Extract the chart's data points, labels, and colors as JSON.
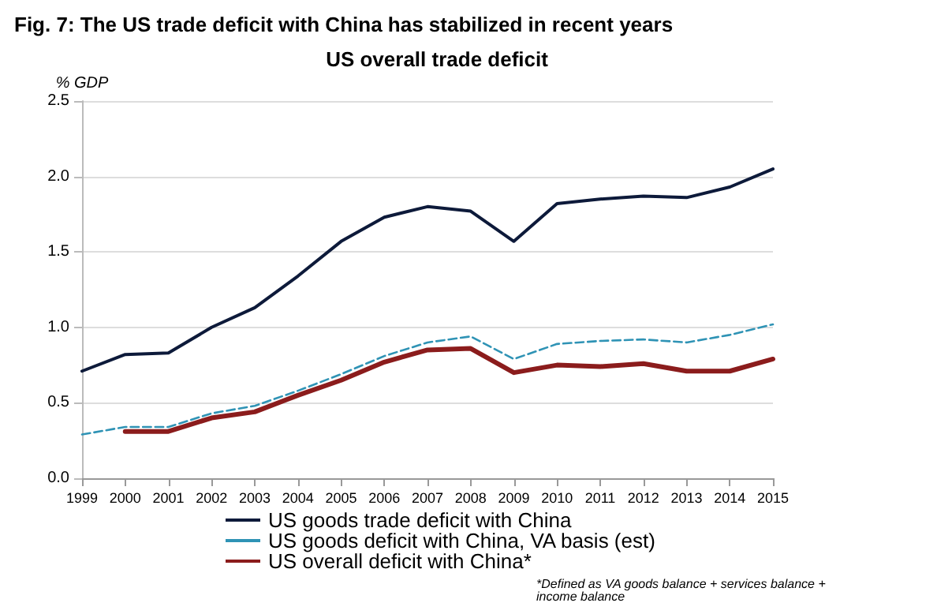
{
  "chart_data": {
    "type": "line",
    "title": "Fig. 7: The US trade deficit with China has stabilized in recent years",
    "subtitle": "US overall trade deficit",
    "ylabel": "% GDP",
    "categories": [
      "1999",
      "2000",
      "2001",
      "2002",
      "2003",
      "2004",
      "2005",
      "2006",
      "2007",
      "2008",
      "2009",
      "2010",
      "2011",
      "2012",
      "2013",
      "2014",
      "2015"
    ],
    "series": [
      {
        "name": "US goods trade deficit with China",
        "color": "#0d1a3a",
        "line_style": "solid",
        "values": [
          0.71,
          0.82,
          0.83,
          1.0,
          1.13,
          1.34,
          1.57,
          1.73,
          1.8,
          1.77,
          1.57,
          1.82,
          1.85,
          1.87,
          1.86,
          1.93,
          2.05
        ]
      },
      {
        "name": "US goods deficit with China, VA basis (est)",
        "color": "#2f93b5",
        "line_style": "dashed",
        "values": [
          0.29,
          0.34,
          0.34,
          0.43,
          0.48,
          0.58,
          0.69,
          0.81,
          0.9,
          0.94,
          0.79,
          0.89,
          0.91,
          0.92,
          0.9,
          0.95,
          1.02
        ]
      },
      {
        "name": "US overall deficit with China*",
        "color": "#8b1c1c",
        "line_style": "solid",
        "values": [
          null,
          0.31,
          0.31,
          0.4,
          0.44,
          0.55,
          0.65,
          0.77,
          0.85,
          0.86,
          0.7,
          0.75,
          0.74,
          0.76,
          0.71,
          0.71,
          0.79
        ]
      }
    ],
    "ylim": [
      0,
      2.5
    ],
    "yticks": [
      {
        "value": 0,
        "label": "0.0"
      },
      0.5,
      {
        "value": 1,
        "label": "1.0"
      },
      1.5,
      {
        "value": 2,
        "label": "2.0"
      },
      2.5
    ],
    "grid": "y",
    "legend": "bottom",
    "marker": "none",
    "annotations": [
      "*Defined as VA goods balance + services balance + income balance"
    ]
  }
}
